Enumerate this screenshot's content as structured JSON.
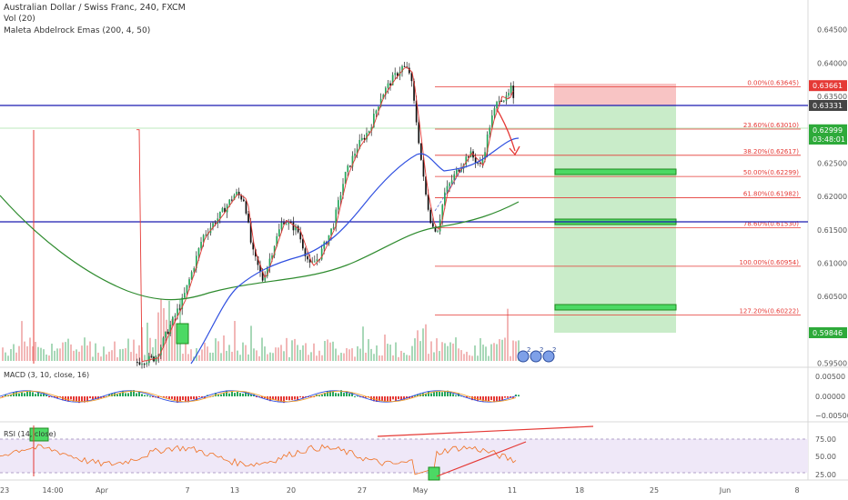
{
  "legend": {
    "title": "Australian Dollar / Swiss Franc, 240, FXCM",
    "vol": "Vol (20)",
    "ema": "Maleta Abdelrock Emas (200, 4, 50)"
  },
  "price_axis": {
    "ticks": [
      "0.64500",
      "0.64000",
      "0.63500",
      "0.63000",
      "0.62500",
      "0.62000",
      "0.61500",
      "0.61000",
      "0.60500",
      "0.60000",
      "0.59500"
    ]
  },
  "badges": {
    "high": "0.63661",
    "hline": "0.63331",
    "current": "0.62999",
    "countdown": "03:48:01",
    "low": "0.59846"
  },
  "fib_levels": [
    {
      "label": "0.00%(0.63645)",
      "value": 0.63645
    },
    {
      "label": "23.60%(0.63010)",
      "value": 0.6301
    },
    {
      "label": "38.20%(0.62617)",
      "value": 0.62617
    },
    {
      "label": "50.00%(0.62299)",
      "value": 0.62299
    },
    {
      "label": "61.80%(0.61982)",
      "value": 0.61982
    },
    {
      "label": "78.60%(0.61530)",
      "value": 0.6153
    },
    {
      "label": "100.00%(0.60954)",
      "value": 0.60954
    },
    {
      "label": "127.20%(0.60222)",
      "value": 0.60222
    }
  ],
  "macd": {
    "label": "MACD (3, 10, close, 16)",
    "ticks": [
      "0.00500",
      "0.00000",
      "−0.00500"
    ]
  },
  "rsi": {
    "label": "RSI (14, close)",
    "ticks": [
      "75.00",
      "50.00",
      "25.00"
    ]
  },
  "time_axis": {
    "left_edge": "23",
    "labels": [
      "14:00",
      "Apr",
      "7",
      "13",
      "20",
      "27",
      "May",
      "11",
      "18",
      "25",
      "Jun",
      "8"
    ]
  },
  "events": [
    "2",
    "2",
    "2"
  ],
  "colors": {
    "up": "#4caf50",
    "down": "#e53935",
    "blue_line": "#1a1ab0",
    "fib": "#e53935",
    "ema200": "#2e8b2e",
    "ema50": "#3050e0",
    "stop_zone": "#f8c4c4",
    "target_zone": "#c9ecc9"
  }
}
